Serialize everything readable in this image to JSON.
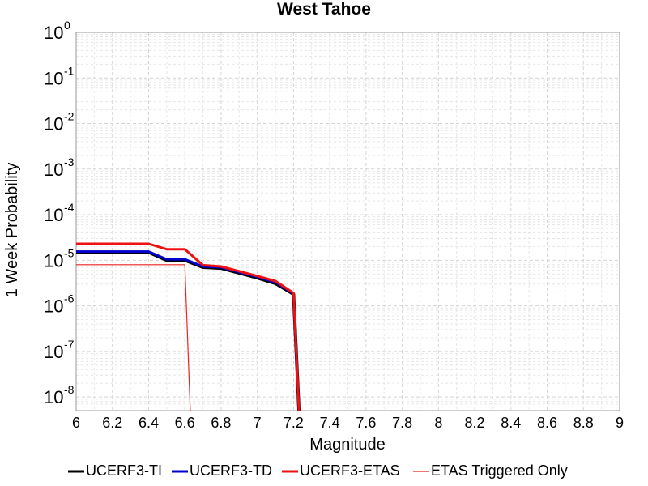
{
  "chart_data": {
    "type": "line",
    "title": "West Tahoe",
    "xlabel": "Magnitude",
    "ylabel": "1 Week Probability",
    "xlim": [
      6,
      9
    ],
    "ylim_log10": [
      -8.3,
      0
    ],
    "yscale": "log",
    "grid": true,
    "legend_position": "bottom",
    "x_ticks": [
      "6",
      "6.2",
      "6.4",
      "6.6",
      "6.8",
      "7",
      "7.2",
      "7.4",
      "7.6",
      "7.8",
      "8",
      "8.2",
      "8.4",
      "8.6",
      "8.8",
      "9"
    ],
    "y_ticks": [
      {
        "base": "10",
        "exp": "0",
        "value": 1
      },
      {
        "base": "10",
        "exp": "-1",
        "value": 0.1
      },
      {
        "base": "10",
        "exp": "-2",
        "value": 0.01
      },
      {
        "base": "10",
        "exp": "-3",
        "value": 0.001
      },
      {
        "base": "10",
        "exp": "-4",
        "value": 0.0001
      },
      {
        "base": "10",
        "exp": "-5",
        "value": 1e-05
      },
      {
        "base": "10",
        "exp": "-6",
        "value": 1e-06
      },
      {
        "base": "10",
        "exp": "-7",
        "value": 1e-07
      },
      {
        "base": "10",
        "exp": "-8",
        "value": 1e-08
      }
    ],
    "series": [
      {
        "name": "UCERF3-TI",
        "color": "#000000",
        "points": [
          [
            6.0,
            1.5e-05
          ],
          [
            6.4,
            1.5e-05
          ],
          [
            6.5,
            1e-05
          ],
          [
            6.6,
            1e-05
          ],
          [
            6.7,
            7e-06
          ],
          [
            6.8,
            6.7e-06
          ],
          [
            7.0,
            4.1e-06
          ],
          [
            7.1,
            3.1e-06
          ],
          [
            7.2,
            1.8e-06
          ],
          [
            7.23,
            5e-09
          ]
        ]
      },
      {
        "name": "UCERF3-TD",
        "color": "#0000cc",
        "points": [
          [
            6.0,
            1.55e-05
          ],
          [
            6.4,
            1.55e-05
          ],
          [
            6.5,
            1.05e-05
          ],
          [
            6.6,
            1.05e-05
          ],
          [
            6.7,
            7.3e-06
          ],
          [
            6.8,
            7e-06
          ],
          [
            7.0,
            4.3e-06
          ],
          [
            7.1,
            3.3e-06
          ],
          [
            7.2,
            1.85e-06
          ],
          [
            7.23,
            5e-09
          ]
        ]
      },
      {
        "name": "UCERF3-ETAS",
        "color": "#ee1111",
        "points": [
          [
            6.0,
            2.3e-05
          ],
          [
            6.4,
            2.3e-05
          ],
          [
            6.5,
            1.75e-05
          ],
          [
            6.6,
            1.75e-05
          ],
          [
            6.7,
            7.8e-06
          ],
          [
            6.8,
            7.3e-06
          ],
          [
            7.0,
            4.5e-06
          ],
          [
            7.1,
            3.5e-06
          ],
          [
            7.2,
            1.9e-06
          ],
          [
            7.23,
            5e-09
          ]
        ]
      },
      {
        "name": "ETAS Triggered Only",
        "color": "#ee2222",
        "points": [
          [
            6.0,
            8e-06
          ],
          [
            6.6,
            8e-06
          ],
          [
            6.63,
            5e-09
          ]
        ]
      }
    ]
  }
}
